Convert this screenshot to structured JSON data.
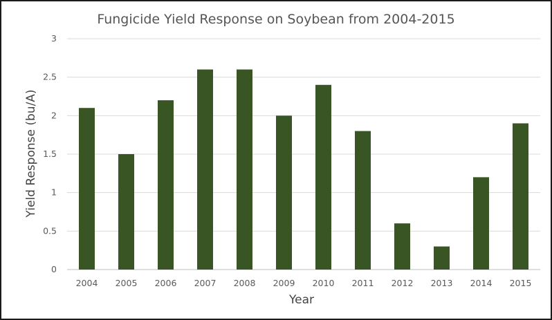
{
  "chart_data": {
    "type": "bar",
    "title": "Fungicide Yield Response on Soybean from 2004-2015",
    "xlabel": "Year",
    "ylabel": "Yield Response (bu/A)",
    "categories": [
      "2004",
      "2005",
      "2006",
      "2007",
      "2008",
      "2009",
      "2010",
      "2011",
      "2012",
      "2013",
      "2014",
      "2015"
    ],
    "values": [
      2.1,
      1.5,
      2.2,
      2.6,
      2.6,
      2.0,
      2.4,
      1.8,
      0.6,
      0.3,
      1.2,
      1.9
    ],
    "ylim": [
      0,
      3
    ],
    "yticks": [
      "0",
      "0.5",
      "1",
      "1.5",
      "2",
      "2.5",
      "3"
    ],
    "grid": true,
    "legend": "none",
    "bar_color": "#3a5524"
  }
}
